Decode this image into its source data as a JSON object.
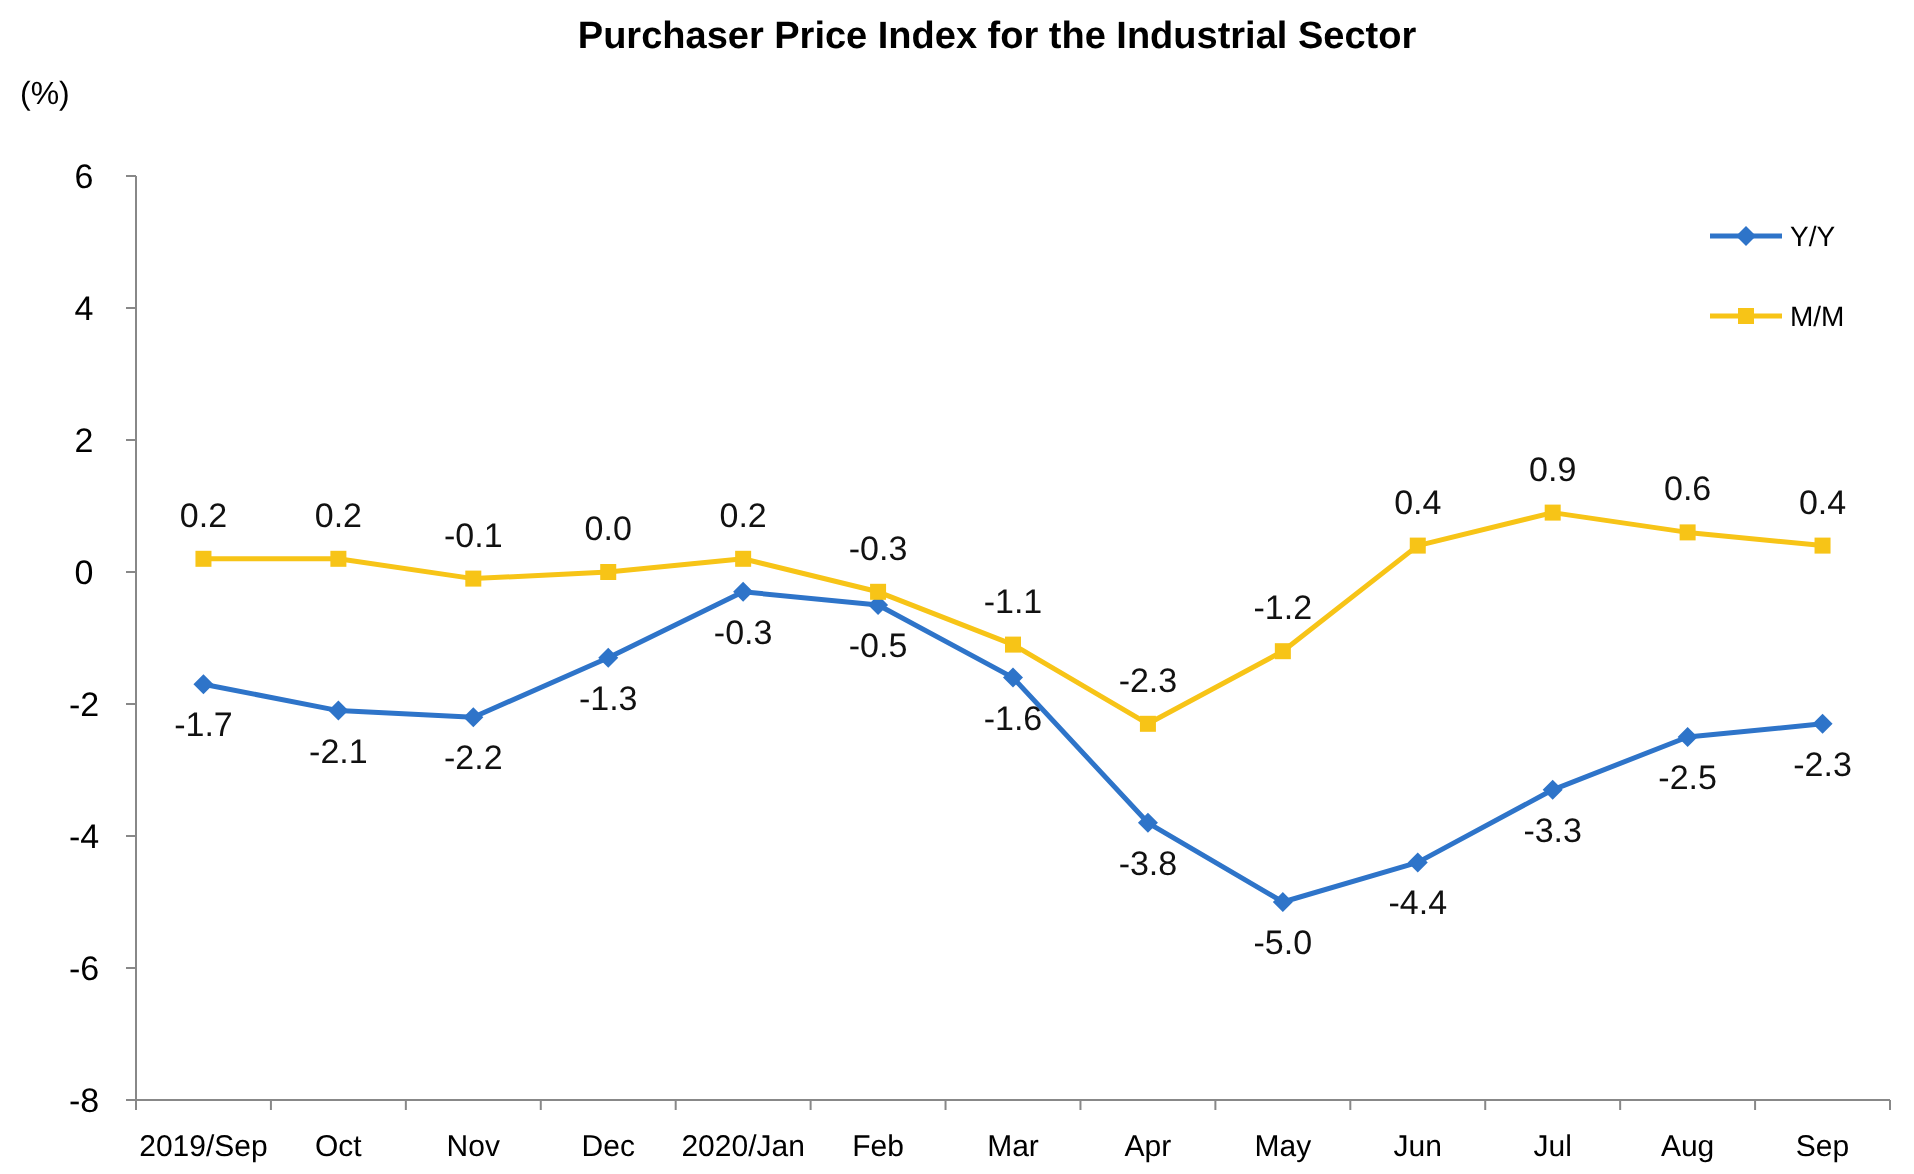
{
  "chart_data": {
    "type": "line",
    "title": "Purchaser Price Index for the Industrial  Sector",
    "ylabel": "(%)",
    "categories": [
      "2019/Sep",
      "Oct",
      "Nov",
      "Dec",
      "2020/Jan",
      "Feb",
      "Mar",
      "Apr",
      "May",
      "Jun",
      "Jul",
      "Aug",
      "Sep"
    ],
    "series": [
      {
        "name": "Y/Y",
        "color": "#2e74c9",
        "marker": "diamond",
        "values": [
          -1.7,
          -2.1,
          -2.2,
          -1.3,
          -0.3,
          -0.5,
          -1.6,
          -3.8,
          -5.0,
          -4.4,
          -3.3,
          -2.5,
          -2.3
        ],
        "value_labels": [
          "-1.7",
          "-2.1",
          "-2.2",
          "-1.3",
          "-0.3",
          "-0.5",
          "-1.6",
          "-3.8",
          "-5.0",
          "-4.4",
          "-3.3",
          "-2.5",
          "-2.3"
        ]
      },
      {
        "name": "M/M",
        "color": "#f7c417",
        "marker": "square",
        "values": [
          0.2,
          0.2,
          -0.1,
          0.0,
          0.2,
          -0.3,
          -1.1,
          -2.3,
          -1.2,
          0.4,
          0.9,
          0.6,
          0.4
        ],
        "value_labels": [
          "0.2",
          "0.2",
          "-0.1",
          "0.0",
          "0.2",
          "-0.3",
          "-1.1",
          "-2.3",
          "-1.2",
          "0.4",
          "0.9",
          "0.6",
          "0.4"
        ]
      }
    ],
    "ylim": [
      -8,
      6
    ],
    "yticks": [
      -8,
      -6,
      -4,
      -2,
      0,
      2,
      4,
      6
    ],
    "grid": false,
    "legend": "top right",
    "line_style": "solid"
  }
}
